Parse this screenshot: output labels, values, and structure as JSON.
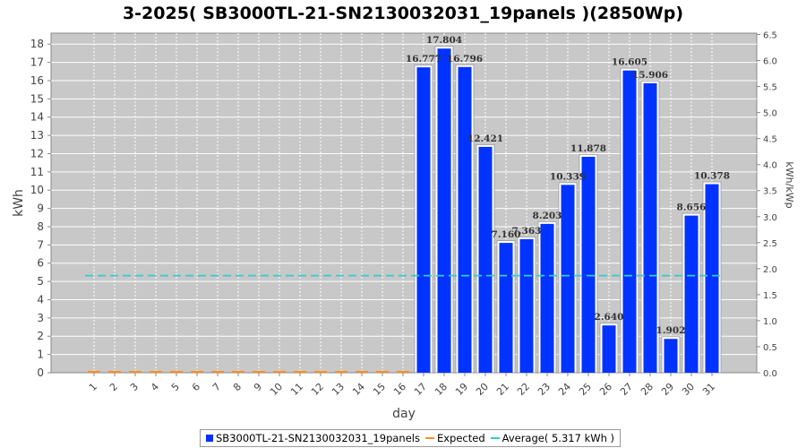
{
  "chart_data": {
    "type": "bar",
    "title": "3-2025( SB3000TL-21-SN2130032031_19panels )(2850Wp)",
    "xlabel": "day",
    "ylabel": "kWh",
    "y2label": "kWh/kWp",
    "categories": [
      "1",
      "2",
      "3",
      "4",
      "5",
      "6",
      "7",
      "8",
      "9",
      "10",
      "11",
      "12",
      "13",
      "14",
      "15",
      "16",
      "17",
      "18",
      "19",
      "20",
      "21",
      "22",
      "23",
      "24",
      "25",
      "26",
      "27",
      "28",
      "29",
      "30",
      "31"
    ],
    "series": [
      {
        "name": "SB3000TL-21-SN2130032031_19panels",
        "color": "#0033ff",
        "values": [
          0,
          0,
          0,
          0,
          0,
          0,
          0,
          0,
          0,
          0,
          0,
          0,
          0,
          0,
          0,
          0,
          16.777,
          17.804,
          16.796,
          12.421,
          7.16,
          7.363,
          8.203,
          10.339,
          11.878,
          2.64,
          16.605,
          15.906,
          1.902,
          8.656,
          10.378
        ],
        "labels": [
          "",
          "",
          "",
          "",
          "",
          "",
          "",
          "",
          "",
          "",
          "",
          "",
          "",
          "",
          "",
          "",
          "16.777",
          "17.804",
          "16.796",
          "12.421",
          "7.160",
          "7.363",
          "8.203",
          "10.339",
          "11.878",
          "2.640",
          "16.605",
          "15.906",
          "1.902",
          "8.656",
          "10.378"
        ]
      },
      {
        "name": "Expected",
        "color": "#ff8c1a",
        "values": [
          0,
          0,
          0,
          0,
          0,
          0,
          0,
          0,
          0,
          0,
          0,
          0,
          0,
          0,
          0,
          0,
          0,
          0,
          0,
          0,
          0,
          0,
          0,
          0,
          0,
          0,
          0,
          0,
          0,
          0,
          0
        ]
      }
    ],
    "average": {
      "label": "Average( 5.317 kWh )",
      "value": 5.317,
      "color": "#33cccc"
    },
    "ylim": [
      0,
      18.6
    ],
    "yticks": [
      "0",
      "1",
      "2",
      "3",
      "4",
      "5",
      "6",
      "7",
      "8",
      "9",
      "10",
      "11",
      "12",
      "13",
      "14",
      "15",
      "16",
      "17",
      "18"
    ],
    "y2lim": [
      0,
      6.526
    ],
    "y2ticks": [
      "0.0",
      "0.5",
      "1.0",
      "1.5",
      "2.0",
      "2.5",
      "3.0",
      "3.5",
      "4.0",
      "4.5",
      "5.0",
      "5.5",
      "6.0",
      "6.5"
    ],
    "grid": true,
    "legend_position": "bottom"
  }
}
